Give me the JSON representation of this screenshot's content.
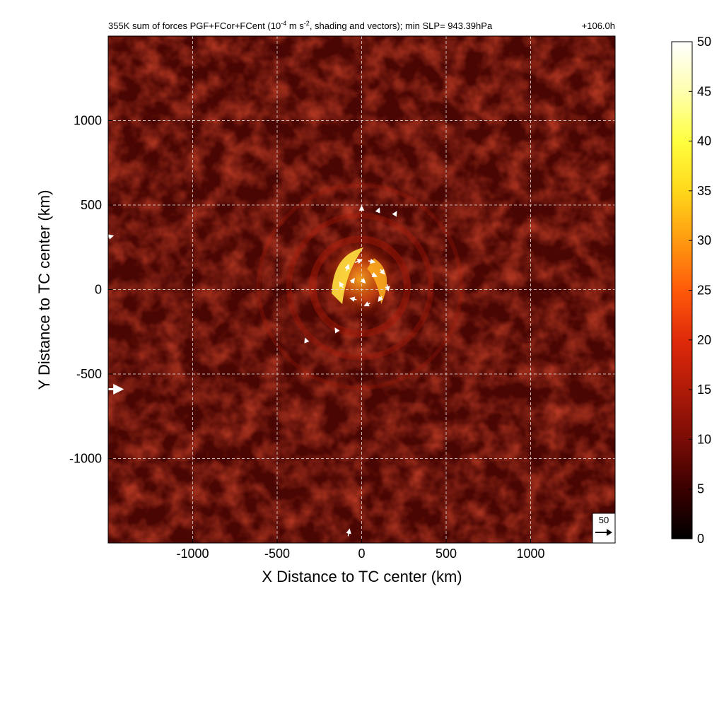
{
  "chart_data": {
    "type": "heatmap",
    "title": "355K sum of forces PGF+FCor+FCent (10",
    "title_exp": "-4",
    "title_mid": " m s",
    "title_exp2": "-2",
    "title_rest": ", shading and vectors); min SLP= 943.39hPa",
    "time_label": "+106.0h",
    "xlabel": "X Distance to TC center (km)",
    "ylabel": "Y Distance to TC center (km)",
    "xlim": [
      -1500,
      1500
    ],
    "ylim": [
      -1500,
      1500
    ],
    "x_ticks": [
      -1000,
      -500,
      0,
      500,
      1000
    ],
    "y_ticks": [
      -1000,
      -500,
      0,
      500,
      1000
    ],
    "x_tick_labels": [
      "-1000",
      "-500",
      "0",
      "500",
      "1000"
    ],
    "y_tick_labels": [
      "-1000",
      "-500",
      "0",
      "500",
      "1000"
    ],
    "grid": true,
    "colorbar": {
      "range": [
        0,
        50
      ],
      "ticks": [
        "0",
        "5",
        "10",
        "15",
        "20",
        "25",
        "30",
        "35",
        "40",
        "45",
        "50"
      ],
      "colormap": [
        "#000000",
        "#3a0000",
        "#7a0c06",
        "#b01a08",
        "#e02a0a",
        "#ff5a0a",
        "#ff9a10",
        "#ffd81a",
        "#ffff40",
        "#ffffb0",
        "#ffffff"
      ]
    },
    "reference_vector": {
      "label": "50",
      "value": 50
    },
    "field_features": {
      "background_mean": 6,
      "core_max": 45,
      "core_center_km": [
        -10,
        60
      ],
      "eyewall_radius_km": 120,
      "rainband_radii_km": [
        280,
        420,
        600
      ]
    },
    "vectors_sample": [
      {
        "x": -40,
        "y": 160,
        "u": 20,
        "v": 8
      },
      {
        "x": 40,
        "y": 170,
        "u": 18,
        "v": -4
      },
      {
        "x": 110,
        "y": 120,
        "u": 12,
        "v": -14
      },
      {
        "x": 150,
        "y": 30,
        "u": 4,
        "v": -18
      },
      {
        "x": 120,
        "y": -40,
        "u": -10,
        "v": -14
      },
      {
        "x": 50,
        "y": -80,
        "u": -16,
        "v": -8
      },
      {
        "x": -30,
        "y": -60,
        "u": -18,
        "v": 4
      },
      {
        "x": -110,
        "y": 10,
        "u": -10,
        "v": 16
      },
      {
        "x": -90,
        "y": 110,
        "u": 6,
        "v": 18
      },
      {
        "x": 0,
        "y": 60,
        "u": 10,
        "v": -10
      },
      {
        "x": 60,
        "y": 90,
        "u": 14,
        "v": -6
      },
      {
        "x": -60,
        "y": 40,
        "u": 8,
        "v": 12
      },
      {
        "x": 0,
        "y": 480,
        "u": 0,
        "v": 6
      },
      {
        "x": 100,
        "y": 470,
        "u": 2,
        "v": 5
      },
      {
        "x": 200,
        "y": 450,
        "u": 3,
        "v": 5
      },
      {
        "x": -150,
        "y": -240,
        "u": -3,
        "v": 5
      },
      {
        "x": -330,
        "y": -300,
        "u": -2,
        "v": 5
      },
      {
        "x": -1500,
        "y": -590,
        "u": 40,
        "v": 0
      },
      {
        "x": -1500,
        "y": 310,
        "u": 14,
        "v": 4
      },
      {
        "x": -80,
        "y": -1460,
        "u": 4,
        "v": 20
      }
    ]
  }
}
